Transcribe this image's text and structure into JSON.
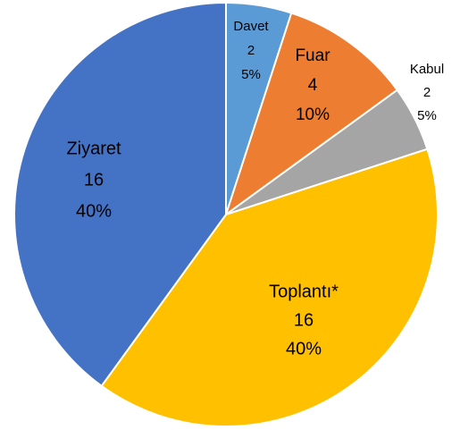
{
  "chart_data": {
    "type": "pie",
    "categories": [
      "Davet",
      "Fuar",
      "Kabul",
      "Toplantı*",
      "Ziyaret"
    ],
    "values": [
      2,
      4,
      2,
      16,
      16
    ],
    "percentage_labels": [
      "5%",
      "10%",
      "5%",
      "40%",
      "40%"
    ],
    "colors": [
      "#5b9bd5",
      "#ed7d31",
      "#a5a5a5",
      "#ffc000",
      "#4472c4"
    ]
  }
}
